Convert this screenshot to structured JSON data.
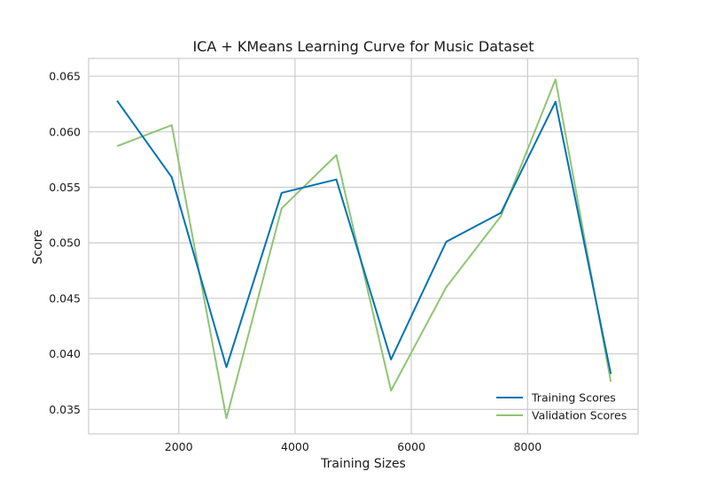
{
  "chart_data": {
    "type": "line",
    "title": "ICA + KMeans Learning Curve for Music Dataset",
    "xlabel": "Training Sizes",
    "ylabel": "Score",
    "xlim": [
      450,
      9900
    ],
    "ylim": [
      0.0328,
      0.0666
    ],
    "xticks": [
      2000,
      4000,
      6000,
      8000
    ],
    "xtick_labels": [
      "2000",
      "4000",
      "6000",
      "8000"
    ],
    "yticks": [
      0.035,
      0.04,
      0.045,
      0.05,
      0.055,
      0.06,
      0.065
    ],
    "ytick_labels": [
      "0.035",
      "0.040",
      "0.045",
      "0.050",
      "0.055",
      "0.060",
      "0.065"
    ],
    "grid": true,
    "legend_position": "lower-right",
    "x": [
      940,
      1880,
      2820,
      3770,
      4710,
      5650,
      6600,
      7540,
      8480,
      9430
    ],
    "series": [
      {
        "name": "Training Scores",
        "color": "#0072b2",
        "values": [
          0.0628,
          0.0559,
          0.0388,
          0.0545,
          0.0557,
          0.0395,
          0.0501,
          0.0527,
          0.0627,
          0.0382
        ]
      },
      {
        "name": "Validation Scores",
        "color": "#8fc475",
        "values": [
          0.0587,
          0.0606,
          0.0342,
          0.0531,
          0.0579,
          0.0367,
          0.046,
          0.0524,
          0.0647,
          0.0375
        ]
      }
    ]
  }
}
